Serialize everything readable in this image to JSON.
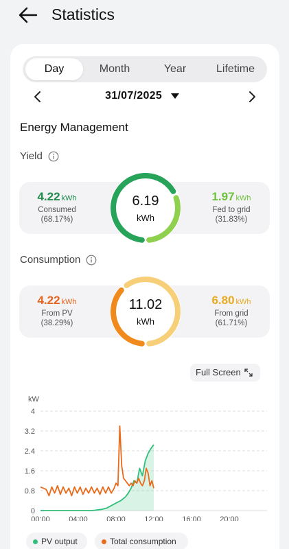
{
  "header": {
    "title": "Statistics"
  },
  "tabs": [
    {
      "label": "Day",
      "active": true
    },
    {
      "label": "Month",
      "active": false
    },
    {
      "label": "Year",
      "active": false
    },
    {
      "label": "Lifetime",
      "active": false
    }
  ],
  "date_selector": {
    "date": "31/07/2025"
  },
  "energy_management": {
    "title": "Energy Management",
    "yield": {
      "title": "Yield",
      "total_value": "6.19",
      "total_unit": "kWh",
      "consumed": {
        "value": "4.22",
        "unit": "kWh",
        "label": "Consumed",
        "pct": "(68.17%)"
      },
      "fed_to_grid": {
        "value": "1.97",
        "unit": "kWh",
        "label": "Fed to grid",
        "pct": "(31.83%)"
      },
      "colors": {
        "main": "#27a35a",
        "secondary": "#8fd14f"
      },
      "share_main": 0.6817
    },
    "consumption": {
      "title": "Consumption",
      "total_value": "11.02",
      "total_unit": "kWh",
      "from_pv": {
        "value": "4.22",
        "unit": "kWh",
        "label": "From PV",
        "pct": "(38.29%)"
      },
      "from_grid": {
        "value": "6.80",
        "unit": "kWh",
        "label": "From grid",
        "pct": "(61.71%)"
      },
      "colors": {
        "main": "#f08a1c",
        "secondary": "#f7cf78"
      },
      "share_main": 0.3829
    }
  },
  "fullscreen": {
    "label": "Full Screen"
  },
  "chart_data": {
    "type": "line",
    "ylabel": "kW",
    "ylim": [
      0,
      4
    ],
    "yticks": [
      "0",
      "0.8",
      "1.6",
      "2.4",
      "3.2",
      "4"
    ],
    "xlim": [
      0,
      24
    ],
    "xticks": [
      "00:00",
      "04:00",
      "08:00",
      "12:00",
      "16:00",
      "20:00"
    ],
    "grid": true,
    "legend_placement": "bottom",
    "series": [
      {
        "name": "PV output",
        "color": "#2fbf7a",
        "x": [
          0,
          5.5,
          6.5,
          7,
          7.5,
          8,
          8.5,
          9,
          9.3,
          9.6,
          9.9,
          10.2,
          10.5,
          10.8,
          11.1,
          11.4,
          11.7,
          12
        ],
        "y": [
          0,
          0,
          0.05,
          0.1,
          0.2,
          0.3,
          0.4,
          0.55,
          0.7,
          0.9,
          1.2,
          1.1,
          1.7,
          1.4,
          2.0,
          2.3,
          2.5,
          2.65
        ]
      },
      {
        "name": "Total consumption",
        "color": "#e86a1a",
        "x": [
          0,
          0.3,
          0.6,
          0.9,
          1.2,
          1.5,
          1.8,
          2.1,
          2.4,
          2.7,
          3.0,
          3.3,
          3.6,
          3.9,
          4.2,
          4.5,
          4.8,
          5.1,
          5.4,
          5.7,
          6.0,
          6.3,
          6.6,
          6.9,
          7.2,
          7.5,
          7.8,
          8.0,
          8.2,
          8.4,
          8.6,
          8.8,
          9.0,
          9.2,
          9.4,
          9.6,
          9.8,
          10.0,
          10.2,
          10.4,
          10.6,
          10.8,
          11.0,
          11.2,
          11.4,
          11.6,
          11.8,
          12.0
        ],
        "y": [
          0.95,
          0.9,
          0.85,
          0.6,
          0.95,
          0.7,
          1.0,
          0.65,
          0.95,
          0.7,
          0.9,
          0.6,
          0.95,
          0.7,
          0.95,
          0.65,
          0.9,
          0.7,
          0.95,
          0.7,
          0.9,
          0.65,
          0.95,
          0.7,
          0.95,
          0.7,
          0.9,
          1.1,
          1.0,
          3.4,
          1.8,
          1.3,
          1.2,
          1.1,
          1.0,
          1.1,
          1.0,
          1.2,
          1.1,
          1.3,
          1.1,
          1.0,
          1.2,
          1.7,
          1.5,
          1.0,
          1.2,
          0.9
        ]
      }
    ]
  }
}
